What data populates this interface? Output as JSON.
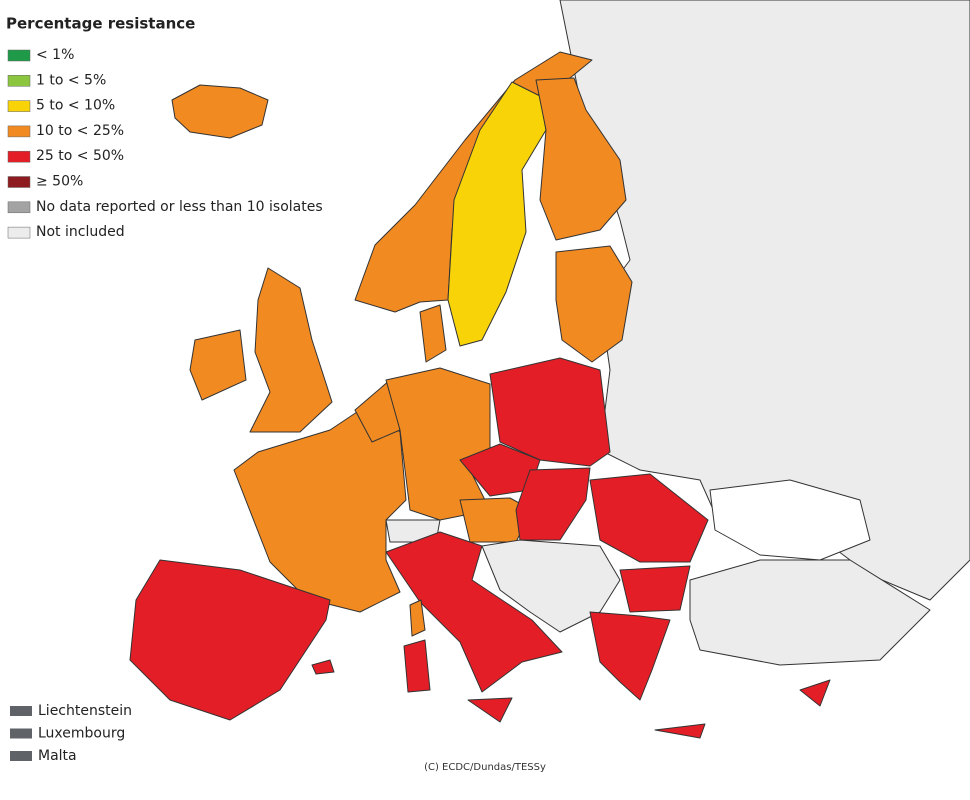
{
  "legend": {
    "title": "Percentage resistance",
    "items": [
      {
        "label": "< 1%",
        "color": "#1f9a48"
      },
      {
        "label": "1 to < 5%",
        "color": "#8cc63f"
      },
      {
        "label": "5 to < 10%",
        "color": "#f7d308"
      },
      {
        "label": "10 to < 25%",
        "color": "#f18a21"
      },
      {
        "label": "25 to < 50%",
        "color": "#e41e26"
      },
      {
        "label": "≥ 50%",
        "color": "#8e1b20"
      },
      {
        "label": "No data reported or less than 10 isolates",
        "color": "#a3a3a3"
      },
      {
        "label": "Not included",
        "color": "#ececec"
      }
    ]
  },
  "small_countries": [
    {
      "label": "Liechtenstein",
      "color": "#5f6368"
    },
    {
      "label": "Luxembourg",
      "color": "#5f6368"
    },
    {
      "label": "Malta",
      "color": "#5f6368"
    }
  ],
  "credit": "(C) ECDC/Dundas/TESSy"
}
